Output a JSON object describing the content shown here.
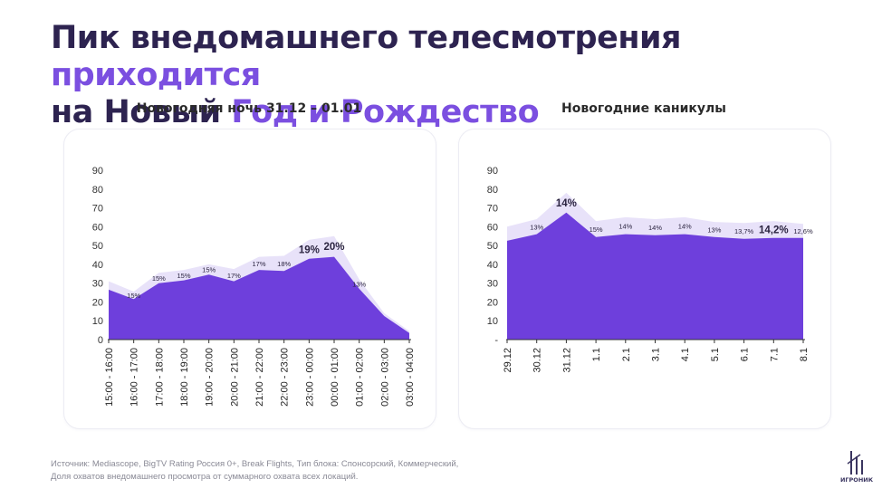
{
  "title": {
    "part1": "Пик внедомашнего телесмотрения ",
    "part2": "приходится",
    "part3": "на Новый ",
    "part4": "Год и Рождество"
  },
  "colors": {
    "accent": "#7b4fe0",
    "fill": "#6e3fdc",
    "fill_light": "#e8e2f9",
    "title": "#2d2350"
  },
  "chart_data": [
    {
      "type": "area",
      "title": "Новогодняя ночь 31.12 – 01.01",
      "categories": [
        "15:00 - 16:00",
        "16:00 - 17:00",
        "17:00 - 18:00",
        "18:00 - 19:00",
        "19:00 - 20:00",
        "20:00 - 21:00",
        "21:00 - 22:00",
        "22:00 - 23:00",
        "23:00 - 00:00",
        "00:00 - 01:00",
        "01:00 - 02:00",
        "02:00 - 03:00",
        "03:00 - 04:00"
      ],
      "yticks": [
        "0",
        "10",
        "20",
        "30",
        "40",
        "50",
        "60",
        "70",
        "80",
        "90"
      ],
      "ylim": [
        0,
        90
      ],
      "series": [
        {
          "values": [
            26.5,
            21.5,
            30,
            31.5,
            34.5,
            31,
            37,
            36.5,
            43,
            44,
            27,
            12.5,
            3.5
          ]
        },
        {
          "values": [
            31,
            25.5,
            35.5,
            37,
            40,
            37.5,
            44,
            44.5,
            53,
            55,
            32,
            14,
            4.5
          ]
        }
      ],
      "data_labels": [
        "",
        "15%",
        "15%",
        "15%",
        "15%",
        "17%",
        "17%",
        "18%",
        "19%",
        "20%",
        "13%",
        "",
        ""
      ],
      "bold_labels": [
        8,
        9
      ]
    },
    {
      "type": "area",
      "title": "Новогодние каникулы",
      "categories": [
        "29.12",
        "30.12",
        "31.12",
        "1.1",
        "2.1",
        "3.1",
        "4.1",
        "5.1",
        "6.1",
        "7.1",
        "8.1"
      ],
      "yticks": [
        "-",
        "10",
        "20",
        "30",
        "40",
        "50",
        "60",
        "70",
        "80",
        "90"
      ],
      "ylim": [
        0,
        90
      ],
      "series": [
        {
          "values": [
            52.5,
            56,
            67.5,
            54.5,
            56,
            55.5,
            56,
            54.5,
            53.5,
            54,
            54
          ]
        },
        {
          "values": [
            60,
            64,
            78,
            63,
            65,
            64,
            65,
            62.5,
            62,
            63,
            61.5
          ]
        }
      ],
      "data_labels": [
        "",
        "13%",
        "14%",
        "15%",
        "14%",
        "14%",
        "14%",
        "13%",
        "13,7%",
        "14,2%",
        "12,6%"
      ],
      "bold_labels": [
        2,
        9
      ]
    }
  ],
  "source": {
    "line1": "Источник: Mediascope, BigTV Rating Россия 0+, Break Flights, Тип блока: Спонсорский, Коммерческий,",
    "line2": "Доля охватов внедомашнего просмотра от суммарного охвата всех локаций."
  },
  "logo": {
    "text": "ИГРОНИК"
  }
}
